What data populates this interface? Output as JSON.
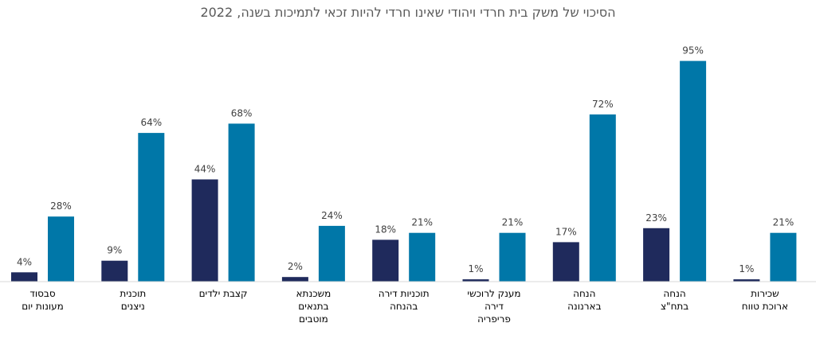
{
  "chart_data": {
    "type": "bar",
    "title": "הסיכוי של משק בית חרדי ויהודי שאינו חרדי להיות זכאי לתמיכות בשנה, 2022",
    "categories": [
      [
        "סבסוד",
        "מעונות יום"
      ],
      [
        "תוכנית",
        "ניצנים"
      ],
      [
        "קצבת ילדים"
      ],
      [
        "משכנתא",
        "בתנאים",
        "מוטבים"
      ],
      [
        "תוכניות דירה",
        "בהנחה"
      ],
      [
        "מענק לרוכשי",
        "דירה",
        "פריפריה"
      ],
      [
        "הנחה",
        "בארנונה"
      ],
      [
        "הנחה",
        "בתח\"צ"
      ],
      [
        "שכירות",
        "ארוכת טווח"
      ]
    ],
    "series": [
      {
        "color": "#1f2a5c",
        "values": [
          4,
          9,
          44,
          2,
          18,
          1,
          17,
          23,
          1
        ],
        "labels": [
          "4%",
          "9%",
          "44%",
          "2%",
          "18%",
          "1%",
          "17%",
          "23%",
          "1%"
        ]
      },
      {
        "color": "#0077a8",
        "values": [
          28,
          64,
          68,
          24,
          21,
          21,
          72,
          95,
          21
        ],
        "labels": [
          "28%",
          "64%",
          "68%",
          "24%",
          "21%",
          "21%",
          "72%",
          "95%",
          "21%"
        ]
      }
    ],
    "ylim": [
      0,
      100
    ],
    "grid": false,
    "legend": "none",
    "axis_color": "#d9d9d9"
  }
}
